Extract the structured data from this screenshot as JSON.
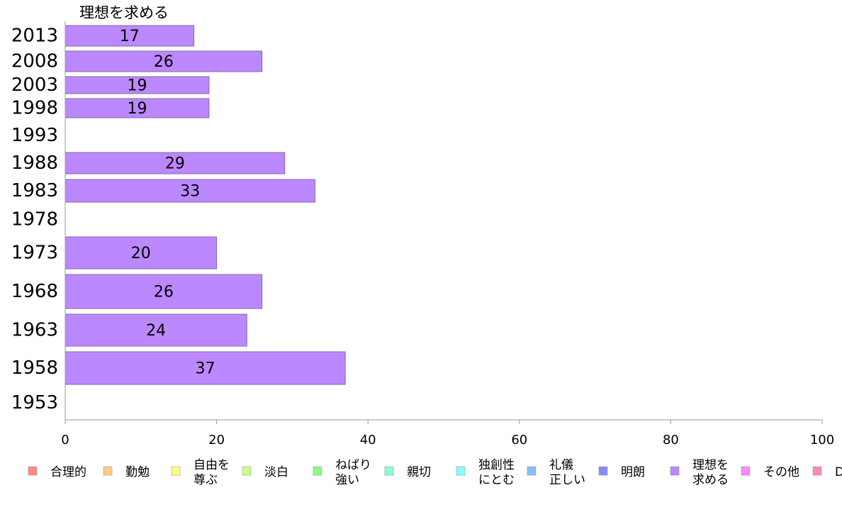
{
  "chart_data": {
    "type": "bar",
    "orientation": "horizontal",
    "title": "",
    "series_label": "理想を求める",
    "xlabel": "",
    "ylabel": "",
    "xlim": [
      0,
      100
    ],
    "xticks": [
      0,
      20,
      40,
      60,
      80,
      100
    ],
    "categories": [
      "2013",
      "2008",
      "2003",
      "1998",
      "1993",
      "1988",
      "1983",
      "1978",
      "1973",
      "1968",
      "1963",
      "1958",
      "1953"
    ],
    "series": [
      {
        "name": "理想を求める",
        "color": "#bb88ff",
        "values": [
          17,
          26,
          19,
          19,
          null,
          29,
          33,
          null,
          20,
          26,
          24,
          37,
          null
        ],
        "value_labels": [
          "17",
          "26",
          "19",
          "19",
          "",
          "29",
          "33",
          "",
          "20",
          "26",
          "24",
          "37",
          ""
        ]
      }
    ],
    "legend": {
      "placement": "bottom",
      "entries": [
        {
          "lines": [
            "合理的"
          ],
          "color": "#ff8888"
        },
        {
          "lines": [
            "勤勉"
          ],
          "color": "#ffcc88"
        },
        {
          "lines": [
            "自由を",
            "尊ぶ"
          ],
          "color": "#ffff88"
        },
        {
          "lines": [
            "淡白"
          ],
          "color": "#ccff88"
        },
        {
          "lines": [
            "ねばり",
            "強い"
          ],
          "color": "#88ff88"
        },
        {
          "lines": [
            "親切"
          ],
          "color": "#88ffcc"
        },
        {
          "lines": [
            "独創性",
            "にとむ"
          ],
          "color": "#88ffff"
        },
        {
          "lines": [
            "礼儀",
            "正しい"
          ],
          "color": "#88bbff"
        },
        {
          "lines": [
            "明朗"
          ],
          "color": "#8888ff"
        },
        {
          "lines": [
            "理想を",
            "求める"
          ],
          "color": "#bb88ff"
        },
        {
          "lines": [
            "その他"
          ],
          "color": "#ff88ff"
        },
        {
          "lines": [
            "D"
          ],
          "color": "#ff88bb"
        }
      ]
    },
    "grid": false
  }
}
